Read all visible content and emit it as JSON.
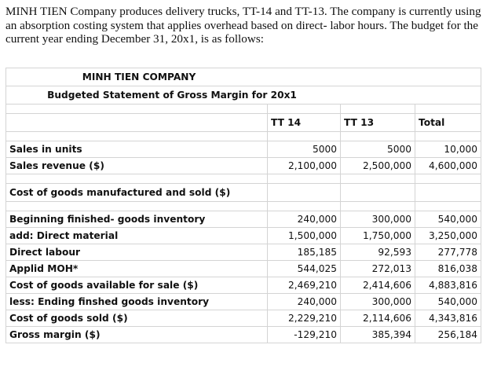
{
  "intro": "MINH TIEN Company produces delivery trucks, TT-14 and TT-13. The company is currently using an absorption costing system that applies overhead based on direct- labor hours. The budget for the current year ending December 31, 20x1, is as follows:",
  "company": "MINH TIEN COMPANY",
  "statement_title": "Budgeted Statement of Gross Margin for 20x1",
  "columns": [
    "TT 14",
    "TT 13",
    "Total"
  ],
  "rows": {
    "sales_units": {
      "label": "Sales in units",
      "tt14": "5000",
      "tt13": "5000",
      "total": "10,000"
    },
    "sales_revenue": {
      "label": "Sales revenue ($)",
      "tt14": "2,100,000",
      "tt13": "2,500,000",
      "total": "4,600,000"
    },
    "cogm_heading": {
      "label": "Cost of goods manufactured and sold ($)"
    },
    "beginning_inventory": {
      "label": "Beginning finished- goods inventory",
      "tt14": "240,000",
      "tt13": "300,000",
      "total": "540,000"
    },
    "direct_material": {
      "label": "add: Direct material",
      "tt14": "1,500,000",
      "tt13": "1,750,000",
      "total": "3,250,000"
    },
    "direct_labour": {
      "label": "Direct labour",
      "tt14": "185,185",
      "tt13": "92,593",
      "total": "277,778"
    },
    "applied_moh": {
      "label": "Applid MOH*",
      "tt14": "544,025",
      "tt13": "272,013",
      "total": "816,038"
    },
    "available_for_sale": {
      "label": "Cost of goods available for sale ($)",
      "tt14": "2,469,210",
      "tt13": "2,414,606",
      "total": "4,883,816"
    },
    "ending_inventory": {
      "label": "less: Ending finshed goods inventory",
      "tt14": "240,000",
      "tt13": "300,000",
      "total": "540,000"
    },
    "cogs": {
      "label": "Cost of goods sold ($)",
      "tt14": "2,229,210",
      "tt13": "2,114,606",
      "total": "4,343,816"
    },
    "gross_margin": {
      "label": "Gross margin ($)",
      "tt14": "-129,210",
      "tt13": "385,394",
      "total": "256,184"
    }
  }
}
